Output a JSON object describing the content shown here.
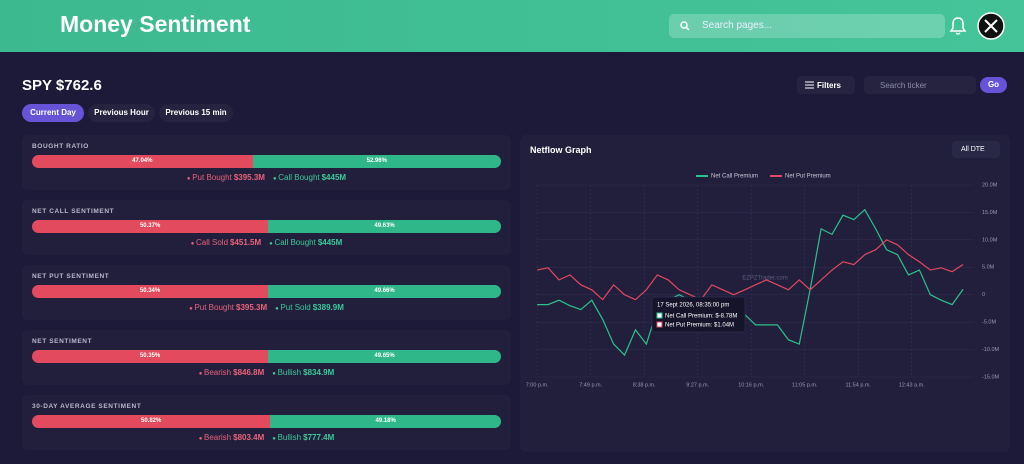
{
  "header": {
    "title": "Money Sentiment",
    "search_placeholder": "Search pages..."
  },
  "ticker": {
    "title": "SPY $762.6"
  },
  "tabs": [
    "Current Day",
    "Previous Hour",
    "Previous 15 min"
  ],
  "toolbar": {
    "filters": "Filters",
    "search_placeholder": "Search ticker",
    "go": "Go"
  },
  "cards": [
    {
      "title": "BOUGHT RATIO",
      "left": {
        "value": 47.04,
        "label": "47.04%"
      },
      "right": {
        "value": 52.96,
        "label": "52.96%"
      },
      "legend": [
        {
          "label": "Put Bought",
          "value": "$395.3M"
        },
        {
          "label": "Call Bought",
          "value": "$445M"
        }
      ]
    },
    {
      "title": "NET CALL SENTIMENT",
      "left": {
        "value": 50.37,
        "label": "50.37%"
      },
      "right": {
        "value": 49.63,
        "label": "49.63%"
      },
      "legend": [
        {
          "label": "Call Sold",
          "value": "$451.5M"
        },
        {
          "label": "Call Bought",
          "value": "$445M"
        }
      ]
    },
    {
      "title": "NET PUT SENTIMENT",
      "left": {
        "value": 50.34,
        "label": "50.34%"
      },
      "right": {
        "value": 49.66,
        "label": "49.66%"
      },
      "legend": [
        {
          "label": "Put Bought",
          "value": "$395.3M"
        },
        {
          "label": "Put Sold",
          "value": "$389.9M"
        }
      ]
    },
    {
      "title": "NET SENTIMENT",
      "left": {
        "value": 50.35,
        "label": "50.35%"
      },
      "right": {
        "value": 49.65,
        "label": "49.65%"
      },
      "legend": [
        {
          "label": "Bearish",
          "value": "$846.8M"
        },
        {
          "label": "Bullish",
          "value": "$834.9M"
        }
      ]
    },
    {
      "title": "30-DAY AVERAGE SENTIMENT",
      "left": {
        "value": 50.82,
        "label": "50.82%"
      },
      "right": {
        "value": 49.18,
        "label": "49.18%"
      },
      "legend": [
        {
          "label": "Bearish",
          "value": "$803.4M"
        },
        {
          "label": "Bullish",
          "value": "$777.4M"
        }
      ]
    }
  ],
  "chart_data": {
    "type": "line",
    "title": "Netflow Graph",
    "dropdown": "All DTE",
    "watermark": "EZPZTrader.com",
    "x": [
      0,
      10,
      20,
      30,
      40,
      50,
      60,
      70,
      80,
      90,
      100,
      110,
      120,
      130,
      140,
      150,
      160,
      170,
      180,
      190,
      200,
      210,
      220,
      230,
      240,
      250,
      260,
      270,
      280,
      290,
      300,
      310,
      320,
      330,
      340,
      350,
      360,
      370,
      380,
      390
    ],
    "xlim": [
      -2,
      400
    ],
    "xticks": [
      {
        "value": 0,
        "label": "7:00 p.m."
      },
      {
        "value": 49,
        "label": "7:49 p.m."
      },
      {
        "value": 98,
        "label": "8:38 p.m."
      },
      {
        "value": 147,
        "label": "9:27 p.m."
      },
      {
        "value": 196,
        "label": "10:16 p.m."
      },
      {
        "value": 245,
        "label": "11:05 p.m."
      },
      {
        "value": 294,
        "label": "11:54 p.m."
      },
      {
        "value": 343,
        "label": "12:43 a.m."
      }
    ],
    "ylim": [
      -15,
      20
    ],
    "yticks": [
      {
        "value": 20,
        "label": "20.0M"
      },
      {
        "value": 15,
        "label": "15.0M"
      },
      {
        "value": 10,
        "label": "10.0M"
      },
      {
        "value": 5,
        "label": "5.0M"
      },
      0,
      {
        "value": -5,
        "label": "-5.0M"
      },
      {
        "value": -10,
        "label": "-10.0M"
      },
      {
        "value": -15,
        "label": "-15.0M"
      }
    ],
    "grid": true,
    "legend_position": "top",
    "series": [
      {
        "name": "Net Call Premium",
        "color": "#2fc08f",
        "values": [
          -1.8,
          -1.8,
          -1,
          -2,
          -2.7,
          -1,
          -4.5,
          -9,
          -11,
          -6.4,
          -9,
          -2.7,
          -1,
          0,
          -1,
          -2.7,
          -3.6,
          -1.8,
          -2.7,
          -3.6,
          -5.5,
          -5.5,
          -5.5,
          -8.2,
          -9,
          1,
          12,
          11,
          14.5,
          13.7,
          15.5,
          12,
          8.2,
          7.3,
          3.6,
          4.5,
          0,
          -1,
          -1.8,
          1
        ]
      },
      {
        "name": "Net Put Premium",
        "color": "#e0485f",
        "values": [
          4.5,
          4.9,
          2.7,
          3.6,
          1.8,
          0.9,
          -0.9,
          1.8,
          0,
          -0.9,
          0.9,
          3.6,
          2.7,
          0.9,
          0,
          -0.9,
          1.8,
          0.9,
          0,
          0.9,
          1.8,
          2.7,
          1.8,
          0.9,
          2.7,
          0.9,
          2.7,
          4.5,
          6,
          5.5,
          7.3,
          8.2,
          10,
          9.1,
          7.3,
          6,
          4.5,
          4.9,
          4.2,
          5.5
        ]
      }
    ],
    "tooltip": {
      "title": "17 Sept 2026, 08:35:00 pm",
      "lines": [
        "Net Call Premium: $-8.78M",
        "Net Put Premium: $1.04M"
      ]
    }
  }
}
